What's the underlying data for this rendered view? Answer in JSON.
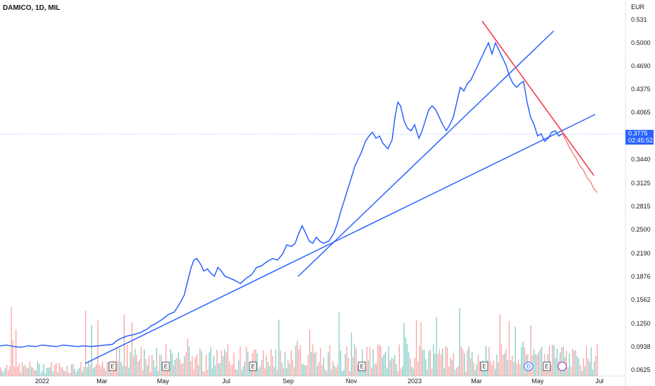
{
  "header": {
    "symbol": "DAMICO, 1D, MIL",
    "currency": "EUR"
  },
  "last_price": {
    "value": "0.3775",
    "countdown": "02:45:52"
  },
  "chart_data": {
    "type": "line",
    "y_axis": {
      "scale": "log",
      "ticks": [
        0.531,
        0.5,
        0.469,
        0.4375,
        0.4065,
        0.3775,
        0.344,
        0.3125,
        0.2815,
        0.25,
        0.219,
        0.1876,
        0.1562,
        0.125,
        0.0938,
        0.0625
      ],
      "tick_labels": [
        "0.531",
        "0.5000",
        "0.4690",
        "0.4375",
        "0.4065",
        "0.3440",
        "0.3125",
        "0.2815",
        "0.2500",
        "0.2190",
        "0.1876",
        "0.1562",
        "0.1250",
        "0.0938",
        "0.0625"
      ]
    },
    "x_axis": {
      "tick_labels": [
        "2022",
        "Mar",
        "May",
        "Jul",
        "Sep",
        "Nov",
        "2023",
        "Mar",
        "May",
        "Jul"
      ]
    },
    "series": [
      {
        "values": [
          [
            0,
            0.095
          ],
          [
            10,
            0.096
          ],
          [
            20,
            0.094
          ],
          [
            30,
            0.093
          ],
          [
            40,
            0.095
          ],
          [
            50,
            0.094
          ],
          [
            60,
            0.096
          ],
          [
            70,
            0.095
          ],
          [
            80,
            0.094
          ],
          [
            90,
            0.096
          ],
          [
            100,
            0.095
          ],
          [
            110,
            0.094
          ],
          [
            120,
            0.095
          ],
          [
            130,
            0.094
          ],
          [
            140,
            0.095
          ],
          [
            150,
            0.096
          ],
          [
            160,
            0.097
          ],
          [
            165,
            0.101
          ],
          [
            170,
            0.104
          ],
          [
            180,
            0.108
          ],
          [
            190,
            0.11
          ],
          [
            200,
            0.113
          ],
          [
            210,
            0.118
          ],
          [
            215,
            0.122
          ],
          [
            220,
            0.124
          ],
          [
            230,
            0.13
          ],
          [
            240,
            0.137
          ],
          [
            248,
            0.14
          ],
          [
            255,
            0.15
          ],
          [
            262,
            0.162
          ],
          [
            268,
            0.185
          ],
          [
            272,
            0.2
          ],
          [
            276,
            0.21
          ],
          [
            280,
            0.212
          ],
          [
            285,
            0.205
          ],
          [
            290,
            0.195
          ],
          [
            295,
            0.198
          ],
          [
            300,
            0.192
          ],
          [
            305,
            0.188
          ],
          [
            310,
            0.2
          ],
          [
            315,
            0.195
          ],
          [
            320,
            0.188
          ],
          [
            328,
            0.185
          ],
          [
            335,
            0.182
          ],
          [
            342,
            0.178
          ],
          [
            350,
            0.185
          ],
          [
            358,
            0.19
          ],
          [
            365,
            0.2
          ],
          [
            372,
            0.202
          ],
          [
            380,
            0.208
          ],
          [
            388,
            0.212
          ],
          [
            395,
            0.21
          ],
          [
            402,
            0.218
          ],
          [
            408,
            0.23
          ],
          [
            415,
            0.228
          ],
          [
            420,
            0.232
          ],
          [
            425,
            0.245
          ],
          [
            430,
            0.255
          ],
          [
            435,
            0.245
          ],
          [
            440,
            0.235
          ],
          [
            445,
            0.232
          ],
          [
            450,
            0.24
          ],
          [
            455,
            0.235
          ],
          [
            460,
            0.232
          ],
          [
            468,
            0.235
          ],
          [
            475,
            0.245
          ],
          [
            480,
            0.258
          ],
          [
            485,
            0.275
          ],
          [
            490,
            0.29
          ],
          [
            495,
            0.305
          ],
          [
            500,
            0.32
          ],
          [
            505,
            0.335
          ],
          [
            510,
            0.345
          ],
          [
            515,
            0.355
          ],
          [
            520,
            0.368
          ],
          [
            525,
            0.375
          ],
          [
            530,
            0.38
          ],
          [
            535,
            0.372
          ],
          [
            540,
            0.375
          ],
          [
            545,
            0.365
          ],
          [
            552,
            0.358
          ],
          [
            558,
            0.37
          ],
          [
            562,
            0.4
          ],
          [
            566,
            0.42
          ],
          [
            570,
            0.415
          ],
          [
            575,
            0.395
          ],
          [
            580,
            0.385
          ],
          [
            585,
            0.382
          ],
          [
            590,
            0.39
          ],
          [
            596,
            0.372
          ],
          [
            600,
            0.38
          ],
          [
            605,
            0.395
          ],
          [
            610,
            0.41
          ],
          [
            615,
            0.415
          ],
          [
            620,
            0.41
          ],
          [
            625,
            0.4
          ],
          [
            630,
            0.39
          ],
          [
            635,
            0.382
          ],
          [
            640,
            0.39
          ],
          [
            645,
            0.4
          ],
          [
            650,
            0.42
          ],
          [
            655,
            0.44
          ],
          [
            660,
            0.435
          ],
          [
            665,
            0.445
          ],
          [
            670,
            0.45
          ],
          [
            675,
            0.46
          ],
          [
            680,
            0.47
          ],
          [
            685,
            0.48
          ],
          [
            690,
            0.49
          ],
          [
            695,
            0.5
          ],
          [
            700,
            0.485
          ],
          [
            705,
            0.5
          ],
          [
            710,
            0.49
          ],
          [
            715,
            0.48
          ],
          [
            720,
            0.47
          ],
          [
            725,
            0.455
          ],
          [
            730,
            0.445
          ],
          [
            735,
            0.44
          ],
          [
            740,
            0.445
          ],
          [
            745,
            0.448
          ],
          [
            750,
            0.42
          ],
          [
            755,
            0.4
          ],
          [
            760,
            0.39
          ],
          [
            765,
            0.375
          ],
          [
            770,
            0.378
          ],
          [
            775,
            0.368
          ],
          [
            780,
            0.372
          ],
          [
            785,
            0.38
          ],
          [
            790,
            0.382
          ],
          [
            795,
            0.375
          ],
          [
            800,
            0.378
          ]
        ],
        "color": "#2962ff"
      },
      {
        "values": [
          [
            800,
            0.378
          ],
          [
            805,
            0.37
          ],
          [
            810,
            0.36
          ],
          [
            815,
            0.352
          ],
          [
            820,
            0.345
          ],
          [
            825,
            0.335
          ],
          [
            830,
            0.33
          ],
          [
            835,
            0.32
          ],
          [
            840,
            0.315
          ],
          [
            845,
            0.305
          ],
          [
            850,
            0.3
          ]
        ],
        "color": "#ef5350"
      }
    ],
    "events": [
      "E",
      "E",
      "E",
      "E",
      "E",
      "D",
      "E"
    ]
  }
}
